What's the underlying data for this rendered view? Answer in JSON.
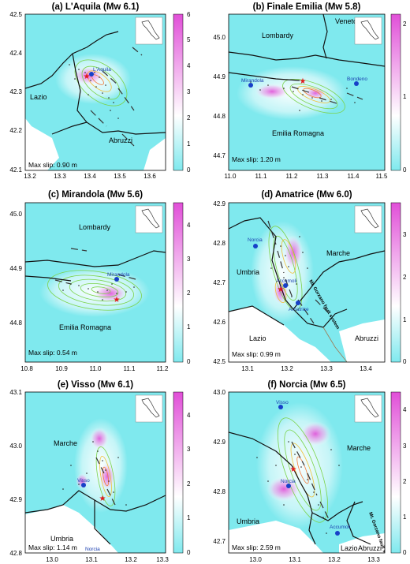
{
  "colors": {
    "background": "#7fe9ee",
    "colorbar_low": "#7fe9ee",
    "colorbar_mid": "#ffffff",
    "colorbar_high": "#e14fd8",
    "border": "#111111",
    "fault": "#333333",
    "contour": "#7bd34a",
    "epicenter": "#e0191d",
    "town": "#1740c8"
  },
  "panels": [
    {
      "title": "(a) L'Aquila (Mw 6.1)",
      "x_ticks": [
        "13.2",
        "13.3",
        "13.4",
        "13.5",
        "13.6"
      ],
      "y_ticks": [
        "42.5",
        "42.4",
        "42.3",
        "42.2",
        "42.1"
      ],
      "cb_ticks": [
        "6",
        "5",
        "4",
        "3",
        "2",
        "1",
        "0"
      ],
      "regions": [
        "Lazio",
        "Abruzzi"
      ],
      "towns": [
        "L'Aquila"
      ],
      "max_slip": "Max slip: 0.90 m"
    },
    {
      "title": "(b) Finale Emilia (Mw 5.8)",
      "x_ticks": [
        "11.0",
        "11.1",
        "11.2",
        "11.3",
        "11.4",
        "11.5"
      ],
      "y_ticks": [
        "45.0",
        "44.9",
        "44.8",
        "44.7"
      ],
      "cb_ticks": [
        "2",
        "1",
        "0"
      ],
      "regions": [
        "Veneto",
        "Lombardy",
        "Emilia Romagna"
      ],
      "towns": [
        "Mirandola",
        "Bondeno"
      ],
      "max_slip": "Max slip: 1.20 m"
    },
    {
      "title": "(c) Mirandola (Mw 5.6)",
      "x_ticks": [
        "10.8",
        "10.9",
        "11.0",
        "11.1",
        "11.2"
      ],
      "y_ticks": [
        "45.0",
        "44.9",
        "44.8"
      ],
      "cb_ticks": [
        "4",
        "3",
        "2",
        "1",
        "0"
      ],
      "regions": [
        "Lombardy",
        "Emilia Romagna"
      ],
      "towns": [
        "Mirandola"
      ],
      "max_slip": "Max slip: 0.54 m"
    },
    {
      "title": "(d) Amatrice (Mw 6.0)",
      "x_ticks": [
        "13.1",
        "13.2",
        "13.3",
        "13.4"
      ],
      "y_ticks": [
        "42.9",
        "42.8",
        "42.7",
        "42.6",
        "42.5"
      ],
      "cb_ticks": [
        "3",
        "2",
        "1",
        "0"
      ],
      "regions": [
        "Umbria",
        "Marche",
        "Lazio",
        "Abruzzi"
      ],
      "towns": [
        "Norcia",
        "Accumoli",
        "Amatrice"
      ],
      "fault_label": "Mt. Gorzano fault system",
      "max_slip": "Max slip: 0.99 m"
    },
    {
      "title": "(e) Visso (Mw 6.1)",
      "x_ticks": [
        "13.0",
        "13.1",
        "13.2",
        "13.3"
      ],
      "y_ticks": [
        "43.1",
        "43.0",
        "42.9",
        "42.8"
      ],
      "cb_ticks": [
        "4",
        "3",
        "2",
        "1",
        "0"
      ],
      "regions": [
        "Marche",
        "Umbria"
      ],
      "towns": [
        "Visso",
        "Norcia"
      ],
      "max_slip": "Max slip: 1.14 m"
    },
    {
      "title": "(f) Norcia (Mw 6.5)",
      "x_ticks": [
        "13.0",
        "13.1",
        "13.2",
        "13.3"
      ],
      "y_ticks": [
        "43.0",
        "42.9",
        "42.8",
        "42.7"
      ],
      "cb_ticks": [
        "4",
        "3",
        "2",
        "1",
        "0"
      ],
      "regions": [
        "Marche",
        "Umbria",
        "Lazio",
        "Abruzzi"
      ],
      "towns": [
        "Visso",
        "Norcia",
        "Accumoli"
      ],
      "fault_label": "Mt. Gorzano fault system",
      "max_slip": "Max slip: 2.59 m"
    }
  ]
}
